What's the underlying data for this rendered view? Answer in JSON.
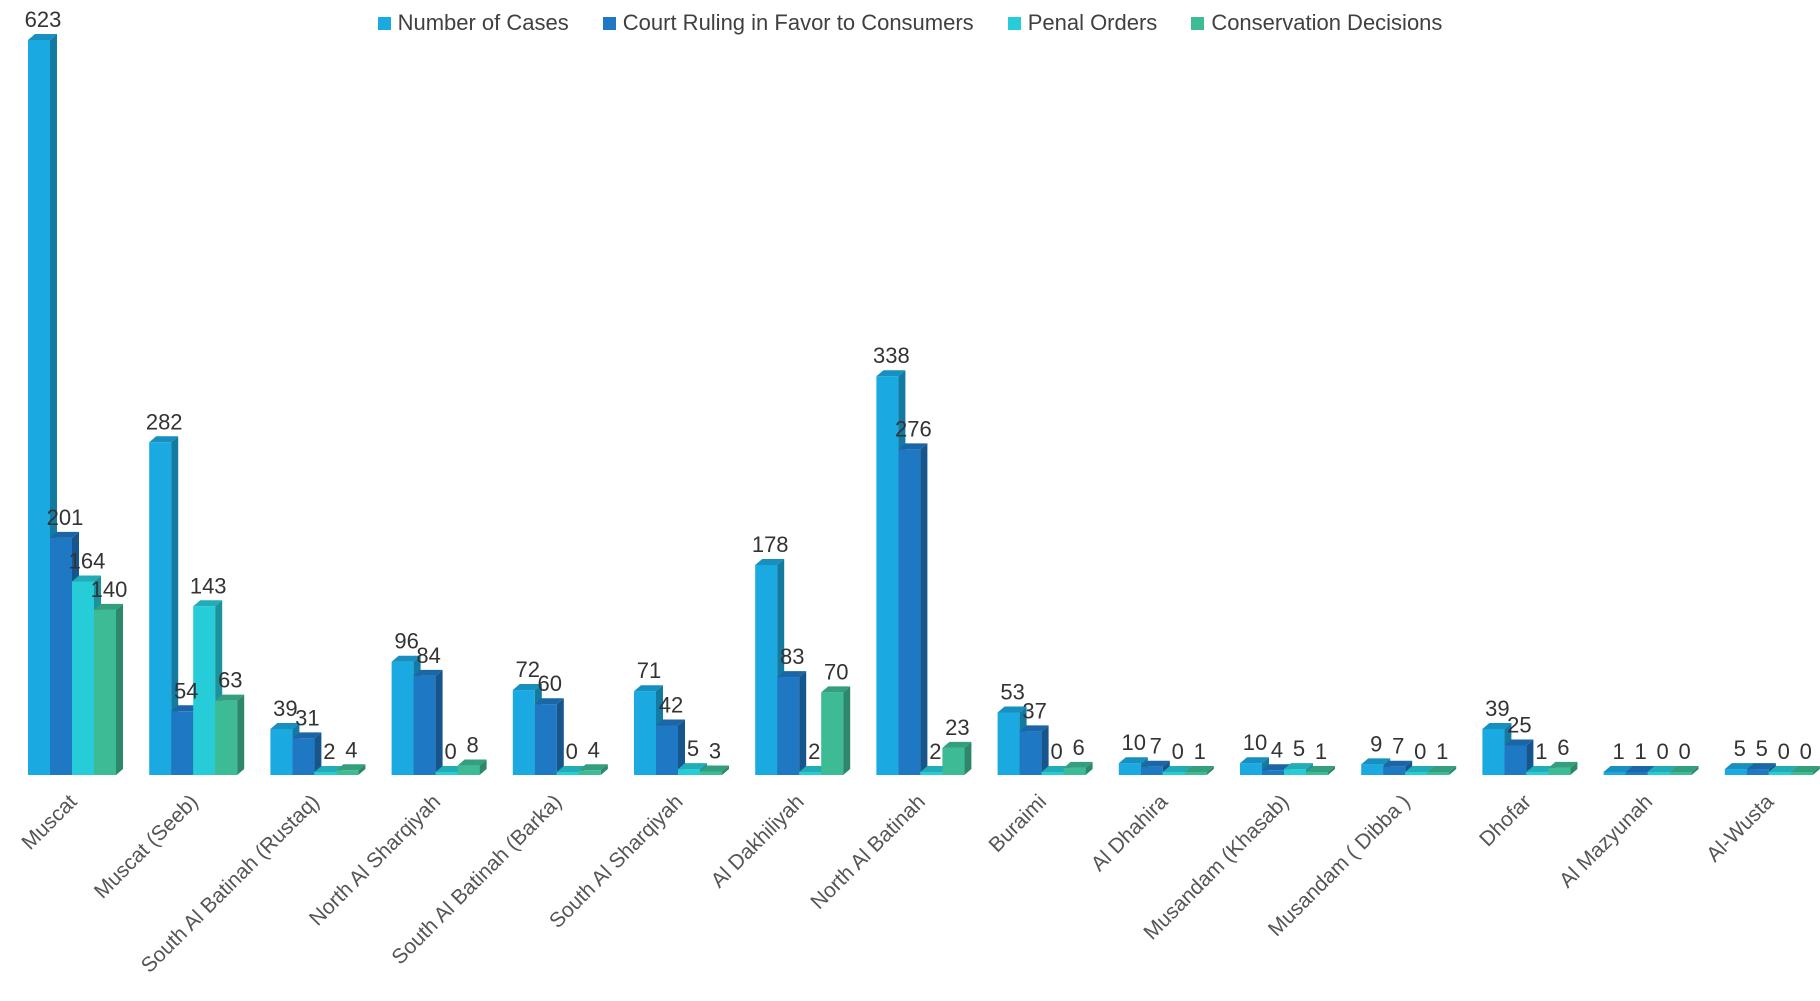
{
  "chart_data": {
    "type": "bar",
    "title": "",
    "xlabel": "",
    "ylabel": "",
    "ylim": [
      0,
      623
    ],
    "grid": false,
    "legend_position": "top",
    "categories": [
      "Muscat",
      "Muscat  (Seeb)",
      "South Al Batinah (Rustaq)",
      "North Al Sharqiyah",
      "South Al Batinah (Barka)",
      "South Al Sharqiyah",
      "Al Dakhiliyah",
      "North Al Batinah",
      "Buraimi",
      "Al Dhahira",
      "Musandam (Khasab)",
      "Musandam ( Dibba )",
      "Dhofar",
      "Al Mazyunah",
      "Al-Wusta"
    ],
    "series": [
      {
        "name": "Number of Cases",
        "color": "#1BA9E1",
        "values": [
          623,
          282,
          39,
          96,
          72,
          71,
          178,
          338,
          53,
          10,
          10,
          9,
          39,
          1,
          5
        ]
      },
      {
        "name": "Court Ruling in Favor to Consumers",
        "color": "#1F78C4",
        "values": [
          201,
          54,
          31,
          84,
          60,
          42,
          83,
          276,
          37,
          7,
          4,
          7,
          25,
          1,
          5
        ]
      },
      {
        "name": "Penal Orders",
        "color": "#26CCD8",
        "values": [
          164,
          143,
          2,
          0,
          0,
          5,
          2,
          2,
          0,
          0,
          5,
          0,
          1,
          0,
          0
        ]
      },
      {
        "name": "Conservation Decisions",
        "color": "#3DBB94",
        "values": [
          140,
          63,
          4,
          8,
          4,
          3,
          70,
          23,
          6,
          1,
          1,
          1,
          6,
          0,
          0
        ]
      }
    ]
  }
}
